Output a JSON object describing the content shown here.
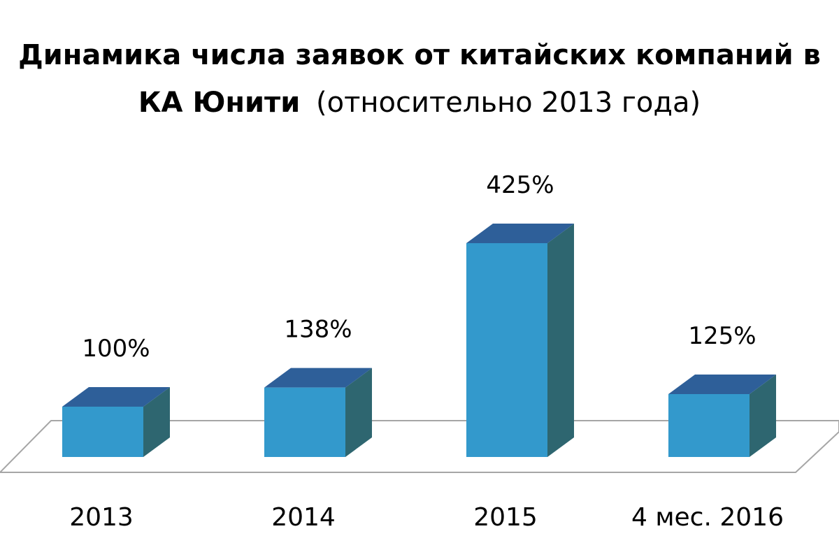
{
  "chart_data": {
    "type": "bar",
    "title_bold_line1": "Динамика числа заявок от китайских компаний в",
    "title_bold_line2": "КА Юнити",
    "title_normal_line2": "(относительно 2013 года)",
    "categories": [
      "2013",
      "2014",
      "2015",
      "4 мес. 2016"
    ],
    "values": [
      100,
      138,
      425,
      125
    ],
    "data_labels": [
      "100%",
      "138%",
      "425%",
      "125%"
    ],
    "xlabel": "",
    "ylabel": "",
    "ylim": [
      0,
      425
    ],
    "grid": false,
    "legend": "none",
    "style": "3d-column",
    "colors": {
      "front": "#3399CC",
      "top": "#2E5F99",
      "side": "#2E6670",
      "floor_stroke": "#A6A6A6"
    }
  }
}
